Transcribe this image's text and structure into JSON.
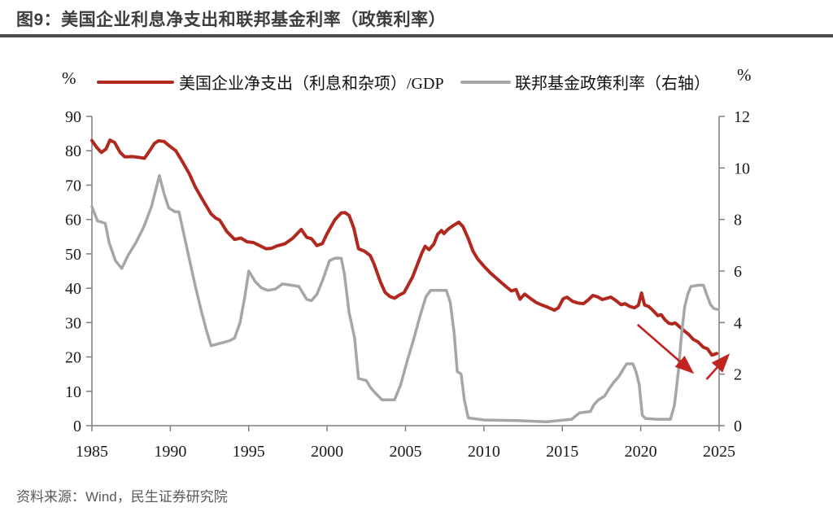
{
  "header": {
    "title": "图9：美国企业利息净支出和联邦基金利率（政策利率）"
  },
  "legend": {
    "left_unit": "%",
    "right_unit": "%",
    "items": [
      {
        "label": "美国企业净支出（利息和杂项）/GDP",
        "color": "#b0281e"
      },
      {
        "label": "联邦基金政策利率（右轴）",
        "color": "#a6a6a6"
      }
    ]
  },
  "footer": {
    "source": "资料来源：Wind，民生证券研究院"
  },
  "chart_data": {
    "type": "line",
    "title": "美国企业利息净支出和联邦基金利率（政策利率）",
    "grid": false,
    "legend_position": "top",
    "x_axis": {
      "range": [
        1985,
        2025
      ],
      "ticks": [
        1985,
        1990,
        1995,
        2000,
        2005,
        2010,
        2015,
        2020,
        2025
      ]
    },
    "left_axis": {
      "unit": "%",
      "range": [
        0,
        90
      ],
      "ticks": [
        0,
        10,
        20,
        30,
        40,
        50,
        60,
        70,
        80,
        90
      ]
    },
    "right_axis": {
      "unit": "%",
      "range": [
        0,
        12
      ],
      "ticks": [
        0,
        2,
        4,
        6,
        8,
        10,
        12
      ]
    },
    "series": [
      {
        "name": "美国企业净支出（利息和杂项）/GDP",
        "axis": "left",
        "color": "#b0281e",
        "width": 4,
        "points": [
          [
            1985.0,
            83
          ],
          [
            1985.3,
            81
          ],
          [
            1985.6,
            79.5
          ],
          [
            1985.9,
            80.5
          ],
          [
            1986.15,
            83.1
          ],
          [
            1986.45,
            82.4
          ],
          [
            1986.8,
            79.5
          ],
          [
            1987.1,
            78.2
          ],
          [
            1987.6,
            78.3
          ],
          [
            1988.1,
            78.0
          ],
          [
            1988.35,
            77.8
          ],
          [
            1988.7,
            80.1
          ],
          [
            1989.0,
            82.2
          ],
          [
            1989.25,
            82.9
          ],
          [
            1989.6,
            82.7
          ],
          [
            1990.0,
            81.2
          ],
          [
            1990.35,
            80.0
          ],
          [
            1990.75,
            77.0
          ],
          [
            1991.2,
            73.4
          ],
          [
            1991.6,
            69.4
          ],
          [
            1992.1,
            65.4
          ],
          [
            1992.6,
            61.6
          ],
          [
            1992.9,
            60.4
          ],
          [
            1993.15,
            59.8
          ],
          [
            1993.6,
            56.5
          ],
          [
            1994.1,
            54.2
          ],
          [
            1994.5,
            54.6
          ],
          [
            1994.9,
            53.5
          ],
          [
            1995.3,
            53.3
          ],
          [
            1995.7,
            52.4
          ],
          [
            1996.1,
            51.5
          ],
          [
            1996.45,
            51.6
          ],
          [
            1996.8,
            52.3
          ],
          [
            1997.3,
            52.9
          ],
          [
            1997.8,
            54.5
          ],
          [
            1998.35,
            57.1
          ],
          [
            1998.7,
            54.8
          ],
          [
            1999.0,
            54.4
          ],
          [
            1999.35,
            52.4
          ],
          [
            1999.7,
            53.0
          ],
          [
            2000.0,
            55.9
          ],
          [
            2000.5,
            60.0
          ],
          [
            2000.9,
            61.9
          ],
          [
            2001.15,
            62.0
          ],
          [
            2001.4,
            61.2
          ],
          [
            2001.7,
            57.5
          ],
          [
            2002.0,
            51.5
          ],
          [
            2002.4,
            50.7
          ],
          [
            2002.75,
            49.5
          ],
          [
            2003.0,
            47.0
          ],
          [
            2003.4,
            41.8
          ],
          [
            2003.7,
            38.8
          ],
          [
            2004.0,
            37.6
          ],
          [
            2004.3,
            37.1
          ],
          [
            2004.6,
            38.0
          ],
          [
            2004.9,
            38.7
          ],
          [
            2005.1,
            40.3
          ],
          [
            2005.45,
            43.3
          ],
          [
            2005.8,
            47.4
          ],
          [
            2006.05,
            50.3
          ],
          [
            2006.25,
            52.2
          ],
          [
            2006.5,
            51.2
          ],
          [
            2006.8,
            52.8
          ],
          [
            2007.05,
            55.7
          ],
          [
            2007.3,
            56.8
          ],
          [
            2007.45,
            55.9
          ],
          [
            2007.7,
            57.1
          ],
          [
            2008.0,
            58.1
          ],
          [
            2008.4,
            59.2
          ],
          [
            2008.65,
            58.0
          ],
          [
            2009.0,
            54.5
          ],
          [
            2009.3,
            50.8
          ],
          [
            2009.6,
            48.5
          ],
          [
            2010.0,
            46.4
          ],
          [
            2010.4,
            44.5
          ],
          [
            2010.7,
            43.3
          ],
          [
            2011.0,
            42.1
          ],
          [
            2011.4,
            40.5
          ],
          [
            2011.75,
            39.2
          ],
          [
            2012.05,
            39.6
          ],
          [
            2012.3,
            36.8
          ],
          [
            2012.6,
            38.3
          ],
          [
            2013.0,
            36.9
          ],
          [
            2013.35,
            35.8
          ],
          [
            2013.7,
            35.1
          ],
          [
            2014.1,
            34.4
          ],
          [
            2014.5,
            33.6
          ],
          [
            2014.75,
            34.3
          ],
          [
            2015.05,
            36.9
          ],
          [
            2015.3,
            37.4
          ],
          [
            2015.65,
            36.2
          ],
          [
            2016.0,
            35.7
          ],
          [
            2016.35,
            35.5
          ],
          [
            2016.65,
            36.6
          ],
          [
            2016.95,
            37.9
          ],
          [
            2017.25,
            37.5
          ],
          [
            2017.55,
            36.7
          ],
          [
            2017.85,
            37.1
          ],
          [
            2018.1,
            37.4
          ],
          [
            2018.45,
            36.3
          ],
          [
            2018.75,
            35.2
          ],
          [
            2019.0,
            35.5
          ],
          [
            2019.3,
            34.7
          ],
          [
            2019.6,
            34.3
          ],
          [
            2019.85,
            35.0
          ],
          [
            2020.05,
            38.6
          ],
          [
            2020.25,
            35.1
          ],
          [
            2020.5,
            34.7
          ],
          [
            2020.7,
            33.9
          ],
          [
            2020.95,
            32.7
          ],
          [
            2021.1,
            32.0
          ],
          [
            2021.3,
            32.3
          ],
          [
            2021.55,
            30.8
          ],
          [
            2021.8,
            29.8
          ],
          [
            2022.0,
            29.6
          ],
          [
            2022.2,
            29.9
          ],
          [
            2022.5,
            28.7
          ],
          [
            2022.8,
            27.5
          ],
          [
            2023.05,
            26.6
          ],
          [
            2023.35,
            25.1
          ],
          [
            2023.65,
            24.4
          ],
          [
            2024.0,
            22.8
          ],
          [
            2024.25,
            22.4
          ],
          [
            2024.55,
            20.5
          ],
          [
            2024.85,
            21.0
          ]
        ]
      },
      {
        "name": "联邦基金政策利率（右轴）",
        "axis": "right",
        "color": "#a6a6a6",
        "width": 3.5,
        "points": [
          [
            1985.0,
            8.5
          ],
          [
            1985.35,
            7.95
          ],
          [
            1985.85,
            7.85
          ],
          [
            1986.1,
            7.1
          ],
          [
            1986.5,
            6.4
          ],
          [
            1986.9,
            6.1
          ],
          [
            1987.3,
            6.6
          ],
          [
            1987.8,
            7.1
          ],
          [
            1988.3,
            7.7
          ],
          [
            1988.8,
            8.5
          ],
          [
            1989.3,
            9.7
          ],
          [
            1989.6,
            9.0
          ],
          [
            1989.9,
            8.45
          ],
          [
            1990.3,
            8.3
          ],
          [
            1990.55,
            8.3
          ],
          [
            1990.8,
            7.6
          ],
          [
            1991.2,
            6.5
          ],
          [
            1991.6,
            5.4
          ],
          [
            1992.0,
            4.4
          ],
          [
            1992.3,
            3.7
          ],
          [
            1992.6,
            3.1
          ],
          [
            1993.2,
            3.2
          ],
          [
            1993.8,
            3.3
          ],
          [
            1994.1,
            3.4
          ],
          [
            1994.45,
            4.0
          ],
          [
            1994.75,
            5.0
          ],
          [
            1995.0,
            6.0
          ],
          [
            1995.4,
            5.6
          ],
          [
            1995.8,
            5.35
          ],
          [
            1996.2,
            5.25
          ],
          [
            1996.7,
            5.3
          ],
          [
            1997.15,
            5.5
          ],
          [
            1997.7,
            5.45
          ],
          [
            1998.2,
            5.4
          ],
          [
            1998.7,
            4.9
          ],
          [
            1999.0,
            4.85
          ],
          [
            1999.35,
            5.1
          ],
          [
            1999.75,
            5.7
          ],
          [
            2000.15,
            6.4
          ],
          [
            2000.5,
            6.5
          ],
          [
            2000.9,
            6.5
          ],
          [
            2001.1,
            5.9
          ],
          [
            2001.4,
            4.4
          ],
          [
            2001.75,
            3.4
          ],
          [
            2002.0,
            1.83
          ],
          [
            2002.5,
            1.75
          ],
          [
            2002.8,
            1.45
          ],
          [
            2003.1,
            1.25
          ],
          [
            2003.5,
            1.0
          ],
          [
            2004.3,
            1.0
          ],
          [
            2004.7,
            1.6
          ],
          [
            2005.1,
            2.5
          ],
          [
            2005.5,
            3.3
          ],
          [
            2005.9,
            4.2
          ],
          [
            2006.3,
            5.0
          ],
          [
            2006.6,
            5.25
          ],
          [
            2007.6,
            5.25
          ],
          [
            2007.85,
            4.8
          ],
          [
            2008.1,
            3.6
          ],
          [
            2008.3,
            2.1
          ],
          [
            2008.55,
            2.0
          ],
          [
            2008.75,
            1.0
          ],
          [
            2009.0,
            0.3
          ],
          [
            2010.0,
            0.22
          ],
          [
            2012.0,
            0.2
          ],
          [
            2014.0,
            0.15
          ],
          [
            2015.6,
            0.25
          ],
          [
            2015.9,
            0.4
          ],
          [
            2016.1,
            0.5
          ],
          [
            2016.8,
            0.55
          ],
          [
            2017.0,
            0.8
          ],
          [
            2017.3,
            1.0
          ],
          [
            2017.7,
            1.15
          ],
          [
            2018.0,
            1.45
          ],
          [
            2018.3,
            1.7
          ],
          [
            2018.6,
            1.9
          ],
          [
            2018.9,
            2.2
          ],
          [
            2019.1,
            2.4
          ],
          [
            2019.5,
            2.4
          ],
          [
            2019.7,
            2.1
          ],
          [
            2019.9,
            1.6
          ],
          [
            2020.1,
            0.4
          ],
          [
            2020.3,
            0.28
          ],
          [
            2021.0,
            0.25
          ],
          [
            2021.9,
            0.25
          ],
          [
            2022.15,
            0.8
          ],
          [
            2022.4,
            2.1
          ],
          [
            2022.6,
            3.5
          ],
          [
            2022.8,
            4.6
          ],
          [
            2023.0,
            5.1
          ],
          [
            2023.2,
            5.4
          ],
          [
            2023.7,
            5.45
          ],
          [
            2024.0,
            5.45
          ],
          [
            2024.2,
            5.1
          ],
          [
            2024.45,
            4.7
          ],
          [
            2024.65,
            4.55
          ],
          [
            2024.95,
            4.5
          ]
        ]
      }
    ],
    "annotations": {
      "arrows": [
        {
          "name": "downtrend-arrow",
          "axis": "left",
          "from": [
            2019.8,
            29.4
          ],
          "to": [
            2023.2,
            15.9
          ],
          "color": "#bf2420"
        },
        {
          "name": "uptick-arrow",
          "axis": "left",
          "from": [
            2024.2,
            13.5
          ],
          "to": [
            2025.5,
            20.1
          ],
          "color": "#bf2420"
        }
      ]
    }
  }
}
